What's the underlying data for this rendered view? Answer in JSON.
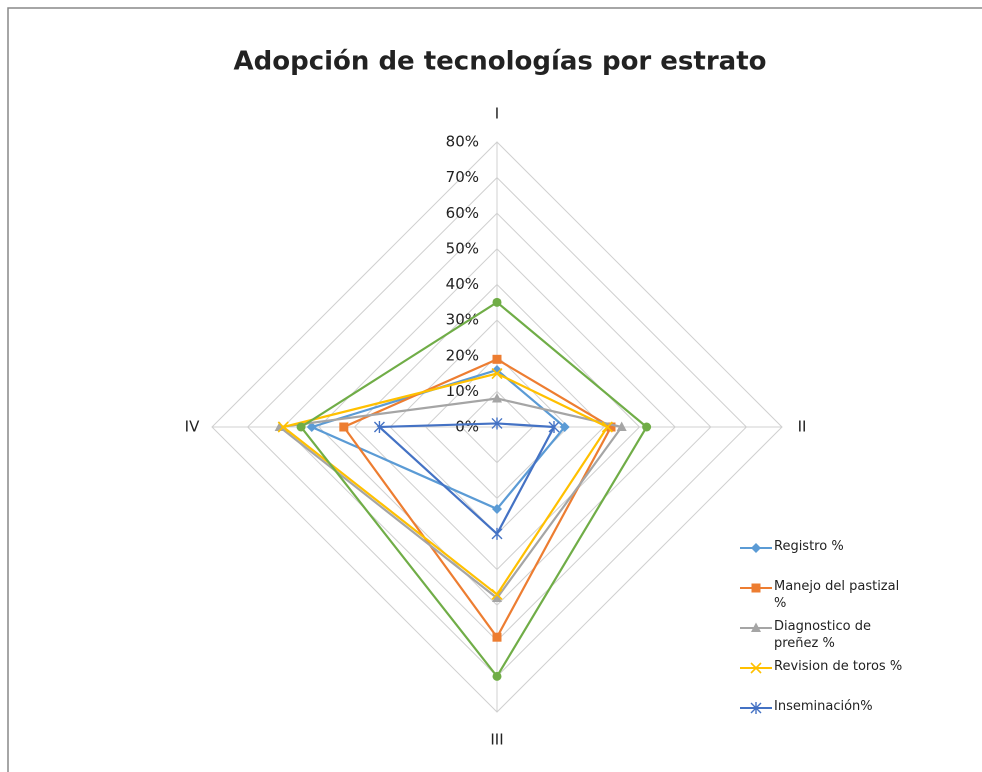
{
  "chart_data": {
    "type": "radar",
    "title": "Adopción de tecnologías por estrato",
    "categories": [
      "I",
      "II",
      "III",
      "IV"
    ],
    "ylim": [
      0,
      80
    ],
    "yticks": [
      {
        "value": 0,
        "label": "0%"
      },
      {
        "value": 10,
        "label": "10%"
      },
      {
        "value": 20,
        "label": "20%"
      },
      {
        "value": 30,
        "label": "30%"
      },
      {
        "value": 40,
        "label": "40%"
      },
      {
        "value": 50,
        "label": "50%"
      },
      {
        "value": 60,
        "label": "60%"
      },
      {
        "value": 70,
        "label": "70%"
      },
      {
        "value": 80,
        "label": "80%"
      }
    ],
    "grid": true,
    "series": [
      {
        "name": "Registro %",
        "color": "#5b9bd5",
        "marker": "diamond",
        "values": [
          16,
          19,
          23,
          52
        ]
      },
      {
        "name": "Manejo del pastizal %",
        "color": "#ed7d31",
        "marker": "square",
        "values": [
          19,
          32,
          59,
          43
        ]
      },
      {
        "name": "Diagnostico de preñez %",
        "color": "#a5a5a5",
        "marker": "triangle",
        "values": [
          8,
          35,
          48,
          61
        ]
      },
      {
        "name": "Revision de toros %",
        "color": "#ffc000",
        "marker": "x",
        "values": [
          15,
          31,
          47,
          60
        ]
      },
      {
        "name": "Inseminación%",
        "color": "#4472c4",
        "marker": "star",
        "values": [
          1,
          16,
          30,
          33
        ]
      },
      {
        "name": null,
        "color": "#70ad47",
        "marker": "circle",
        "values": [
          35,
          42,
          70,
          55
        ]
      }
    ]
  }
}
